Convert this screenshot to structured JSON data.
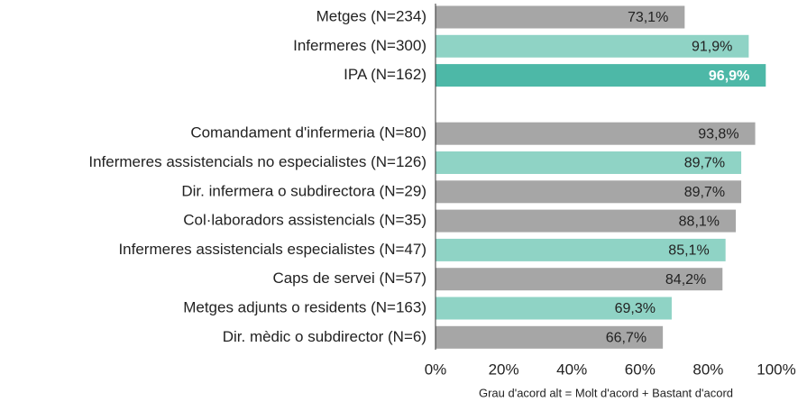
{
  "chart_data": {
    "type": "hbar",
    "categories": [
      "Metges (N=234)",
      "Infermeres (N=300)",
      "IPA (N=162)",
      null,
      "Comandament d'infermeria (N=80)",
      "Infermeres assistencials no especialistes (N=126)",
      "Dir. infermera o subdirectora (N=29)",
      "Col·laboradors assistencials (N=35)",
      "Infermeres assistencials especialistes (N=47)",
      "Caps de servei (N=57)",
      "Metges adjunts o residents (N=163)",
      "Dir. mèdic o subdirector (N=6)"
    ],
    "values": [
      73.1,
      91.9,
      96.9,
      null,
      93.8,
      89.7,
      89.7,
      88.1,
      85.1,
      84.2,
      69.3,
      66.7
    ],
    "value_labels": [
      "73,1%",
      "91,9%",
      "96,9%",
      null,
      "93,8%",
      "89,7%",
      "89,7%",
      "88,1%",
      "85,1%",
      "84,2%",
      "69,3%",
      "66,7%"
    ],
    "colors": [
      "#a6a6a6",
      "#8fd3c5",
      "#4db8a7",
      null,
      "#a6a6a6",
      "#8fd3c5",
      "#a6a6a6",
      "#a6a6a6",
      "#8fd3c5",
      "#a6a6a6",
      "#8fd3c5",
      "#a6a6a6"
    ],
    "value_label_colors": [
      "#222222",
      "#222222",
      "#ffffff",
      null,
      "#222222",
      "#222222",
      "#222222",
      "#222222",
      "#222222",
      "#222222",
      "#222222",
      "#222222"
    ],
    "xlim": [
      0,
      100
    ],
    "xticks": [
      {
        "value": 0,
        "label": "0%"
      },
      {
        "value": 20,
        "label": "20%"
      },
      {
        "value": 40,
        "label": "40%"
      },
      {
        "value": 60,
        "label": "60%"
      },
      {
        "value": 80,
        "label": "80%"
      },
      {
        "value": 100,
        "label": "100%"
      }
    ],
    "xlabel": "Grau d'acord alt = Molt d'acord + Bastant d'acord"
  }
}
